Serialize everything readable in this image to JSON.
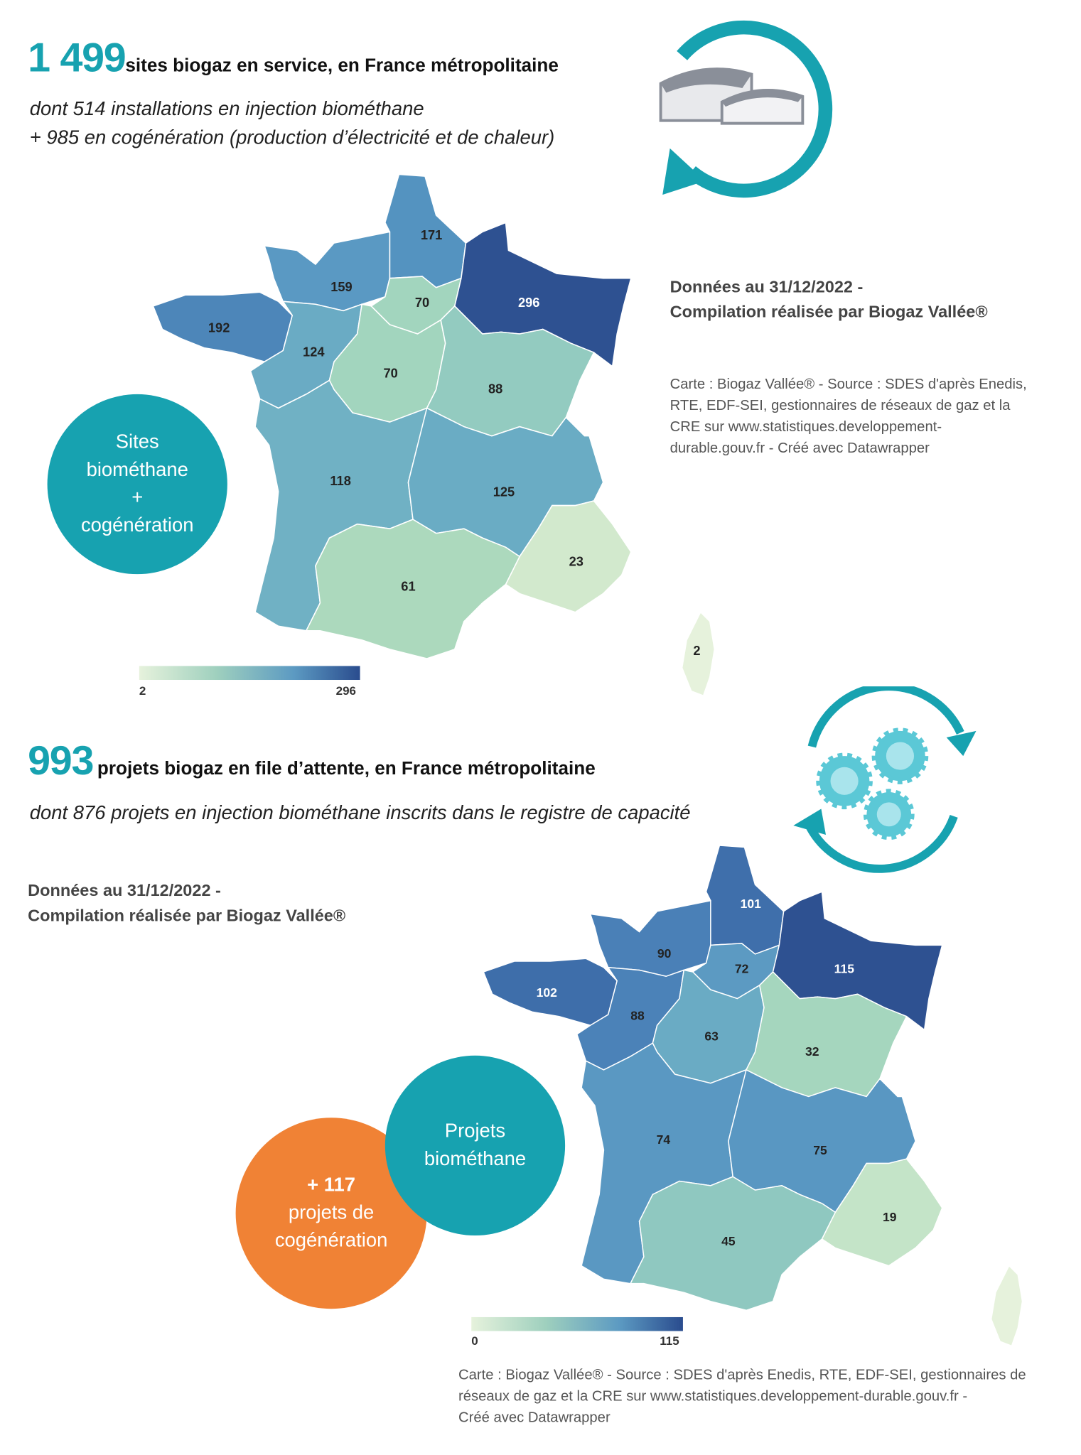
{
  "section1": {
    "count": "1 499",
    "headline": "sites biogaz en service, en France métropolitaine",
    "line1": "dont 514 installations en injection biométhane",
    "line2": "+ 985 en cogénération (production d’électricité et de chaleur)",
    "note_line1": "Données au 31/12/2022 -",
    "note_line2": "Compilation réalisée par Biogaz Vallée®",
    "source_lines": [
      "Carte : Biogaz Vallée® - Source : SDES d'après Enedis,",
      "RTE, EDF-SEI, gestionnaires de réseaux de gaz et la",
      "CRE sur www.statistiques.developpement-",
      "durable.gouv.fr - Créé avec Datawrapper"
    ],
    "circle": [
      "Sites",
      "biométhane",
      "+",
      "cogénération"
    ],
    "legend_min": "2",
    "legend_max": "296"
  },
  "section2": {
    "count": "993",
    "headline": "projets biogaz en file d’attente, en France métropolitaine",
    "line1": "dont 876 projets en injection biométhane inscrits dans le registre de capacité",
    "note_line1": "Données au 31/12/2022 -",
    "note_line2": "Compilation réalisée par Biogaz Vallée®",
    "circle_teal": [
      "Projets",
      "biométhane"
    ],
    "circle_orange": [
      "+ 117",
      "projets de",
      "cogénération"
    ],
    "legend_min": "0",
    "legend_max": "115",
    "source_lines": [
      "Carte : Biogaz Vallée® - Source : SDES d'après Enedis, RTE, EDF-SEI, gestionnaires de",
      "réseaux de gaz et la CRE sur www.statistiques.developpement-durable.gouv.fr -",
      "Créé avec Datawrapper"
    ]
  },
  "chart_data": [
    {
      "type": "choropleth",
      "title": "Sites biométhane + cogénération",
      "range": [
        2,
        296
      ],
      "regions": {
        "hauts_de_france": "171",
        "grand_est": "296",
        "normandie": "159",
        "ile_de_france": "70",
        "bretagne": "192",
        "pays_de_la_loire": "124",
        "centre_val_de_loire": "70",
        "bourgogne_franche_comte": "88",
        "nouvelle_aquitaine": "118",
        "auvergne_rhone_alpes": "125",
        "provence_alpes_cote_azur": "23",
        "occitanie": "61",
        "corse": "2"
      },
      "colors": {
        "hauts_de_france": "#5493c0",
        "grand_est": "#2e5191",
        "normandie": "#5a99c3",
        "ile_de_france": "#a2d5be",
        "bretagne": "#4d86b9",
        "pays_de_la_loire": "#6aabc4",
        "centre_val_de_loire": "#a2d5be",
        "bourgogne_franche_comte": "#93cbc0",
        "nouvelle_aquitaine": "#70b1c4",
        "auvergne_rhone_alpes": "#6aacc4",
        "provence_alpes_cote_azur": "#d2e9cd",
        "occitanie": "#acd9bd",
        "corse": "#e6f2dc"
      }
    },
    {
      "type": "choropleth",
      "title": "Projets biométhane",
      "range": [
        0,
        115
      ],
      "regions": {
        "hauts_de_france": "101",
        "grand_est": "115",
        "normandie": "90",
        "ile_de_france": "72",
        "bretagne": "102",
        "pays_de_la_loire": "88",
        "centre_val_de_loire": "63",
        "bourgogne_franche_comte": "32",
        "nouvelle_aquitaine": "74",
        "auvergne_rhone_alpes": "75",
        "provence_alpes_cote_azur": "19",
        "occitanie": "45",
        "corse": ""
      },
      "colors": {
        "hauts_de_france": "#3f6fab",
        "grand_est": "#2e5191",
        "normandie": "#4a80b7",
        "ile_de_france": "#5c9ac2",
        "bretagne": "#3e6eaa",
        "pays_de_la_loire": "#4b82b8",
        "centre_val_de_loire": "#6aabc4",
        "bourgogne_franche_comte": "#a5d6be",
        "nouvelle_aquitaine": "#5a98c2",
        "auvergne_rhone_alpes": "#5997c2",
        "provence_alpes_cote_azur": "#c4e4c8",
        "occitanie": "#8fc8c0",
        "corse": "#e6f2dc"
      }
    }
  ],
  "colors": {
    "teal": "#17a2b0",
    "orange": "#f08235",
    "gear": "#5bc8d6"
  }
}
